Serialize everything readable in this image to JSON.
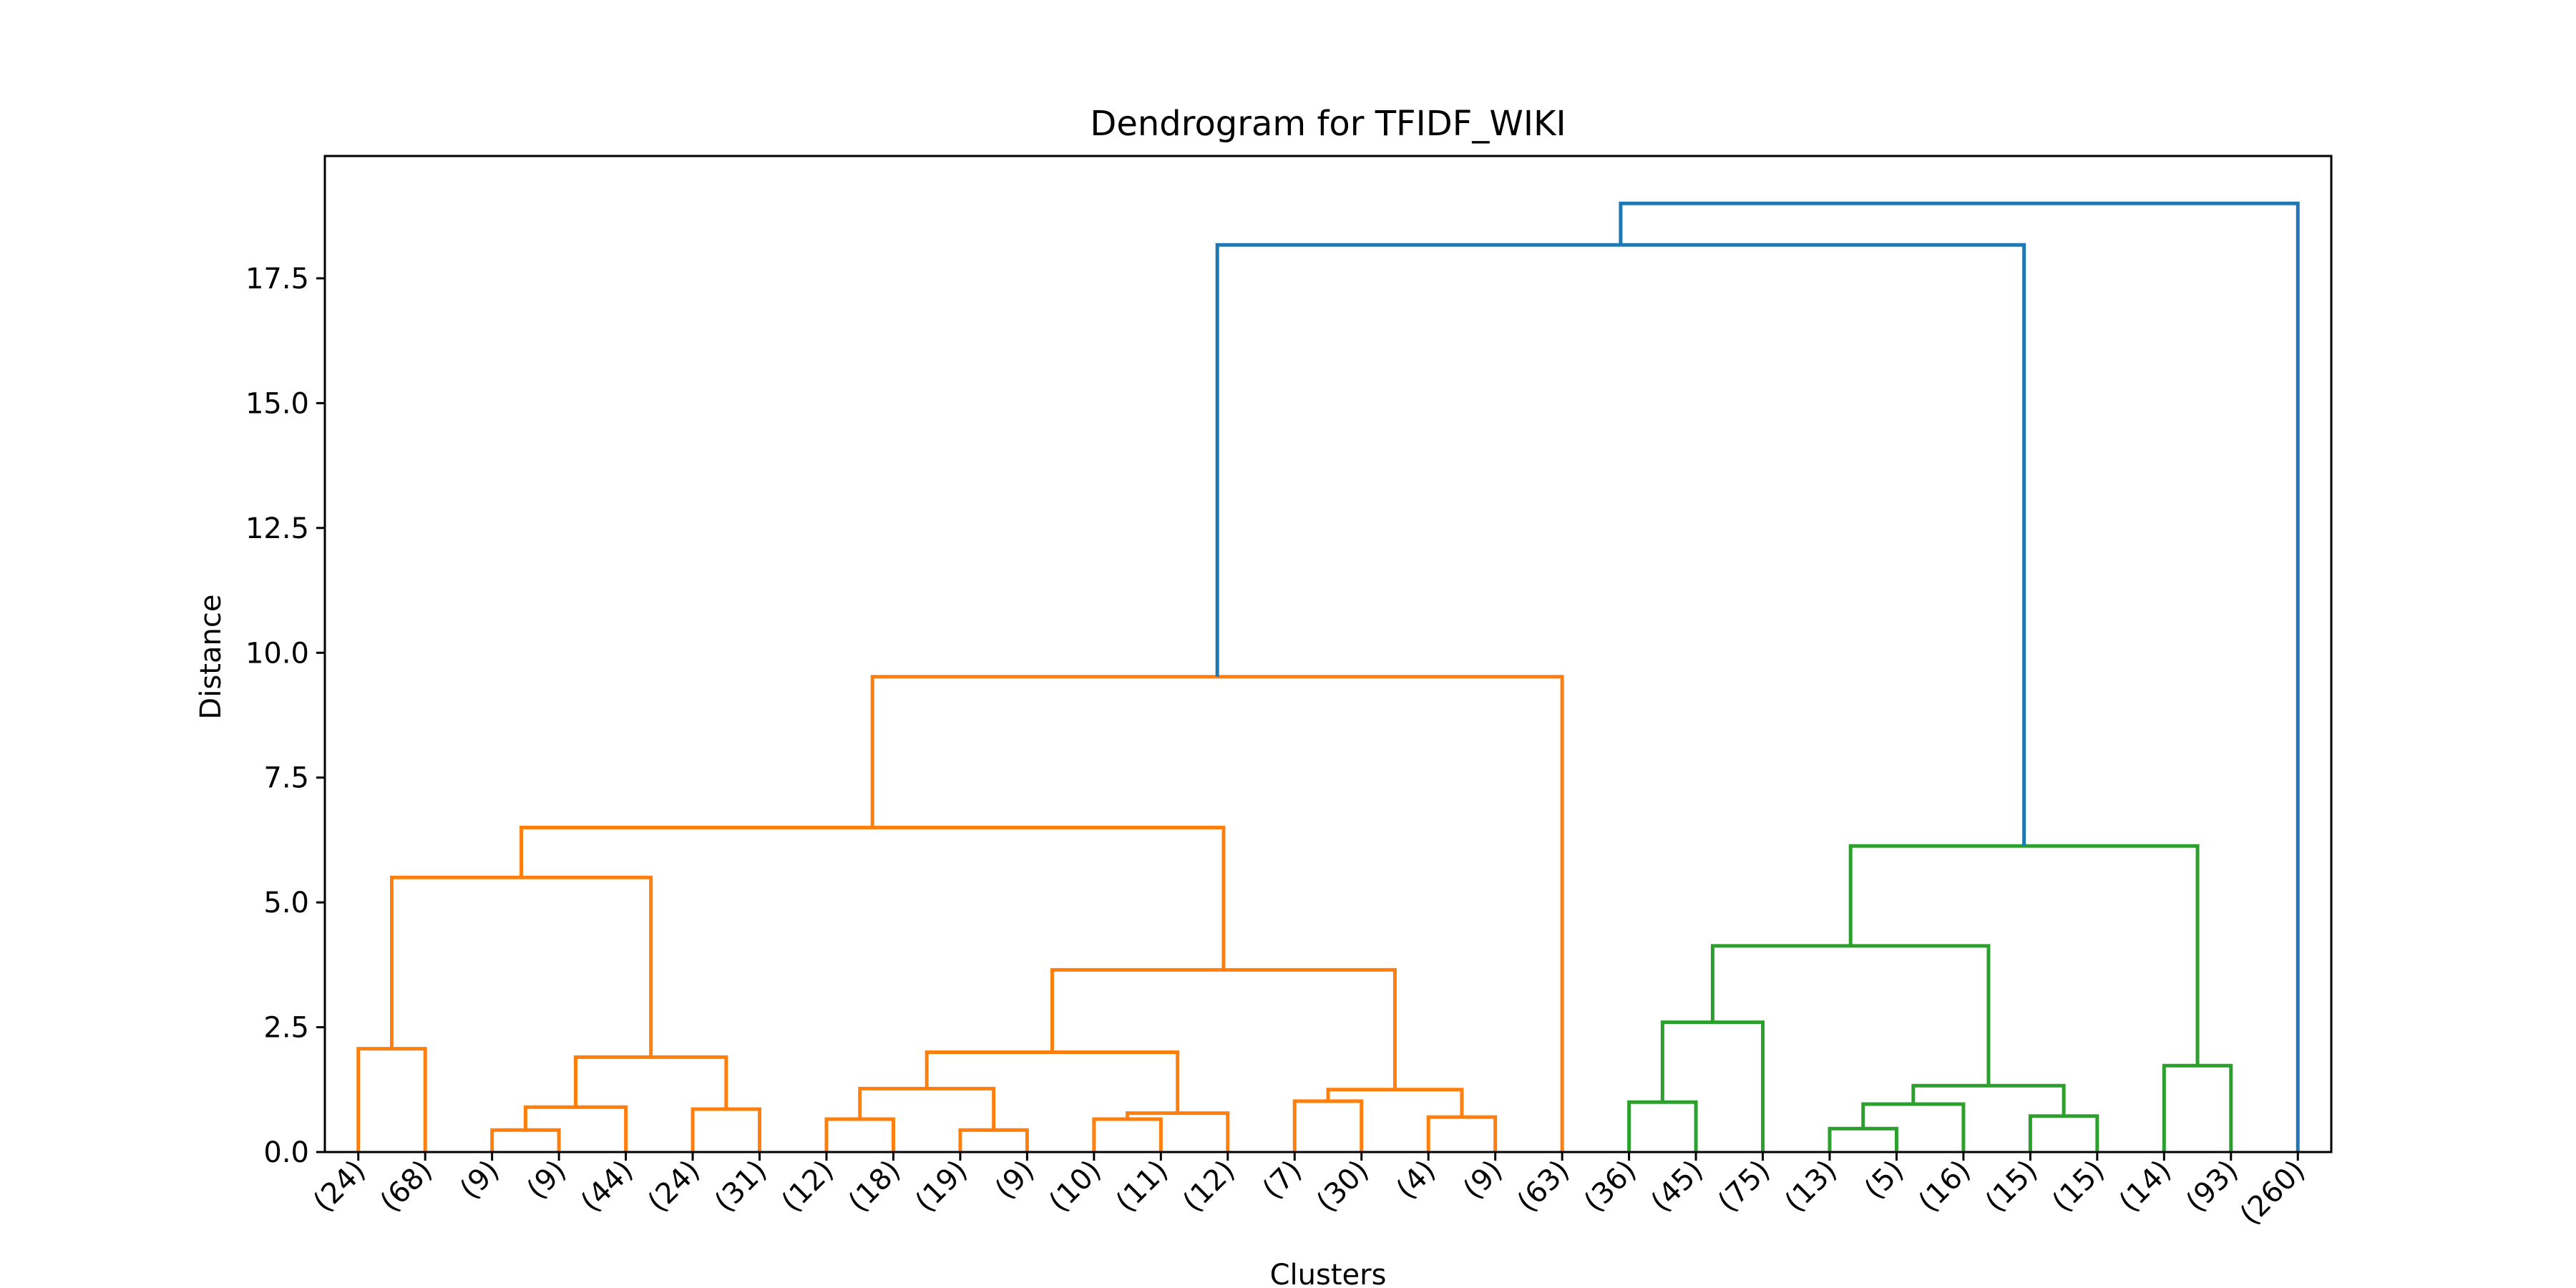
{
  "chart_data": {
    "type": "dendrogram",
    "title": "Dendrogram for TFIDF_WIKI",
    "xlabel": "Clusters",
    "ylabel": "Distance",
    "ylim": [
      0,
      19.95
    ],
    "yticks": [
      0.0,
      2.5,
      5.0,
      7.5,
      10.0,
      12.5,
      15.0,
      17.5
    ],
    "ytick_labels": [
      "0.0",
      "2.5",
      "5.0",
      "7.5",
      "10.0",
      "12.5",
      "15.0",
      "17.5"
    ],
    "leaves": [
      "(24)",
      "(68)",
      "(9)",
      "(9)",
      "(44)",
      "(24)",
      "(31)",
      "(12)",
      "(18)",
      "(19)",
      "(9)",
      "(10)",
      "(11)",
      "(12)",
      "(7)",
      "(30)",
      "(4)",
      "(9)",
      "(63)",
      "(36)",
      "(45)",
      "(75)",
      "(13)",
      "(5)",
      "(16)",
      "(15)",
      "(15)",
      "(14)",
      "(93)",
      "(260)"
    ],
    "colors": {
      "cluster_1": "#ff7f0e",
      "cluster_2": "#2ca02c",
      "above_threshold": "#1f77b4"
    },
    "links": [
      {
        "left": "L0",
        "right": "L1",
        "height": 2.07,
        "color": "cluster_1"
      },
      {
        "left": "L2",
        "right": "L3",
        "height": 0.44,
        "color": "cluster_1"
      },
      {
        "left": "N1",
        "right": "L4",
        "height": 0.9,
        "color": "cluster_1"
      },
      {
        "left": "L5",
        "right": "L6",
        "height": 0.86,
        "color": "cluster_1"
      },
      {
        "left": "N2",
        "right": "N3",
        "height": 1.9,
        "color": "cluster_1"
      },
      {
        "left": "N0",
        "right": "N4",
        "height": 5.5,
        "color": "cluster_1"
      },
      {
        "left": "L7",
        "right": "L8",
        "height": 0.66,
        "color": "cluster_1"
      },
      {
        "left": "L9",
        "right": "L10",
        "height": 0.44,
        "color": "cluster_1"
      },
      {
        "left": "N6",
        "right": "N7",
        "height": 1.27,
        "color": "cluster_1"
      },
      {
        "left": "L11",
        "right": "L12",
        "height": 0.66,
        "color": "cluster_1"
      },
      {
        "left": "N9",
        "right": "L13",
        "height": 0.78,
        "color": "cluster_1"
      },
      {
        "left": "N8",
        "right": "N10",
        "height": 2.0,
        "color": "cluster_1"
      },
      {
        "left": "L14",
        "right": "L15",
        "height": 1.02,
        "color": "cluster_1"
      },
      {
        "left": "L16",
        "right": "L17",
        "height": 0.7,
        "color": "cluster_1"
      },
      {
        "left": "N12",
        "right": "N13",
        "height": 1.25,
        "color": "cluster_1"
      },
      {
        "left": "N11",
        "right": "N14",
        "height": 3.65,
        "color": "cluster_1"
      },
      {
        "left": "N5",
        "right": "N15",
        "height": 6.5,
        "color": "cluster_1"
      },
      {
        "left": "N16",
        "right": "L18",
        "height": 9.52,
        "color": "cluster_1"
      },
      {
        "left": "L19",
        "right": "L20",
        "height": 1.0,
        "color": "cluster_2"
      },
      {
        "left": "N18",
        "right": "L21",
        "height": 2.6,
        "color": "cluster_2"
      },
      {
        "left": "L22",
        "right": "L23",
        "height": 0.47,
        "color": "cluster_2"
      },
      {
        "left": "N20",
        "right": "L24",
        "height": 0.96,
        "color": "cluster_2"
      },
      {
        "left": "L25",
        "right": "L26",
        "height": 0.72,
        "color": "cluster_2"
      },
      {
        "left": "N21",
        "right": "N22",
        "height": 1.33,
        "color": "cluster_2"
      },
      {
        "left": "N19",
        "right": "N23",
        "height": 4.13,
        "color": "cluster_2"
      },
      {
        "left": "L27",
        "right": "L28",
        "height": 1.73,
        "color": "cluster_2"
      },
      {
        "left": "N24",
        "right": "N25",
        "height": 6.13,
        "color": "cluster_2"
      },
      {
        "left": "N17",
        "right": "N26",
        "height": 18.17,
        "color": "above_threshold"
      },
      {
        "left": "N27",
        "right": "L29",
        "height": 19.0,
        "color": "above_threshold"
      }
    ]
  }
}
